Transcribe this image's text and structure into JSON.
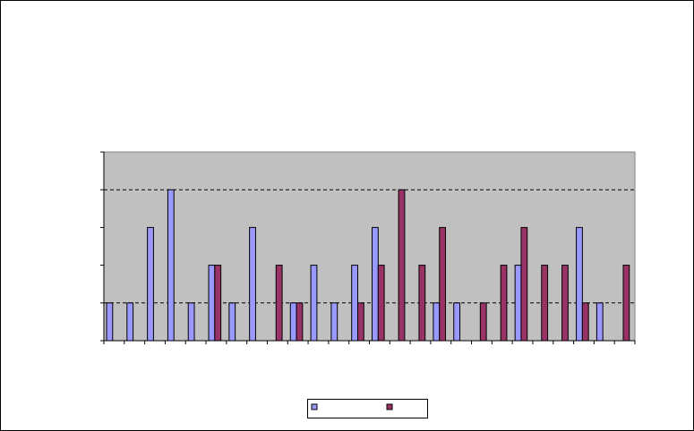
{
  "chart_data": {
    "type": "bar",
    "categories": [
      null,
      null,
      null,
      null,
      null,
      null,
      null,
      null,
      null,
      null,
      null,
      null,
      null,
      null,
      null,
      null,
      null,
      null,
      null,
      null,
      null,
      null,
      null,
      null,
      null,
      null
    ],
    "series": [
      {
        "color": "#9999ff",
        "values": [
          1,
          1,
          3,
          4,
          1,
          2,
          1,
          3,
          0,
          1,
          2,
          1,
          2,
          3,
          0,
          0,
          1,
          1,
          0,
          0,
          2,
          0,
          0,
          3,
          1,
          0
        ]
      },
      {
        "color": "#993366",
        "values": [
          0,
          0,
          0,
          0,
          0,
          2,
          0,
          0,
          2,
          1,
          0,
          0,
          1,
          2,
          4,
          2,
          3,
          0,
          1,
          2,
          3,
          2,
          2,
          1,
          0,
          2
        ]
      }
    ],
    "ylim": [
      0,
      5
    ],
    "yticks": [
      0,
      1,
      2,
      3,
      4,
      5
    ],
    "ygrid": [
      1,
      4
    ],
    "legend": "bottom"
  }
}
